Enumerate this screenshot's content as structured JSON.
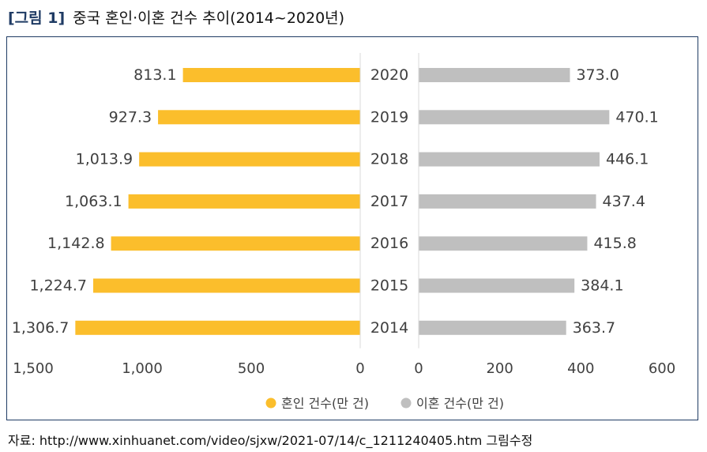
{
  "header": {
    "fig_label": "[그림 1]",
    "title": "중국 혼인·이혼 건수 추이(2014~2020년)"
  },
  "source": "자료: http://www.xinhuanet.com/video/sjxw/2021-07/14/c_1211240405.htm 그림수정",
  "chart_data": {
    "type": "bar",
    "orientation": "horizontal",
    "layout": "butterfly",
    "categories": [
      "2020",
      "2019",
      "2018",
      "2017",
      "2016",
      "2015",
      "2014"
    ],
    "series": [
      {
        "name": "혼인 건수(만 건)",
        "color": "#FBBE2C",
        "values": [
          813.1,
          927.3,
          1013.9,
          1063.1,
          1142.8,
          1224.7,
          1306.7
        ],
        "labels": [
          "813.1",
          "927.3",
          "1,013.9",
          "1,063.1",
          "1,142.8",
          "1,224.7",
          "1,306.7"
        ],
        "axis_range": [
          0,
          1500
        ],
        "axis_ticks": [
          "1,500",
          "1,000",
          "500",
          "0"
        ],
        "direction": "reversed"
      },
      {
        "name": "이혼 건수(만 건)",
        "color": "#BFBFBF",
        "values": [
          373.0,
          470.1,
          446.1,
          437.4,
          415.8,
          384.1,
          363.7
        ],
        "labels": [
          "373.0",
          "470.1",
          "446.1",
          "437.4",
          "415.8",
          "384.1",
          "363.7"
        ],
        "axis_range": [
          0,
          600
        ],
        "axis_ticks": [
          "0",
          "200",
          "400",
          "600"
        ],
        "direction": "normal"
      }
    ],
    "legend_position": "bottom-center",
    "grid": false
  }
}
